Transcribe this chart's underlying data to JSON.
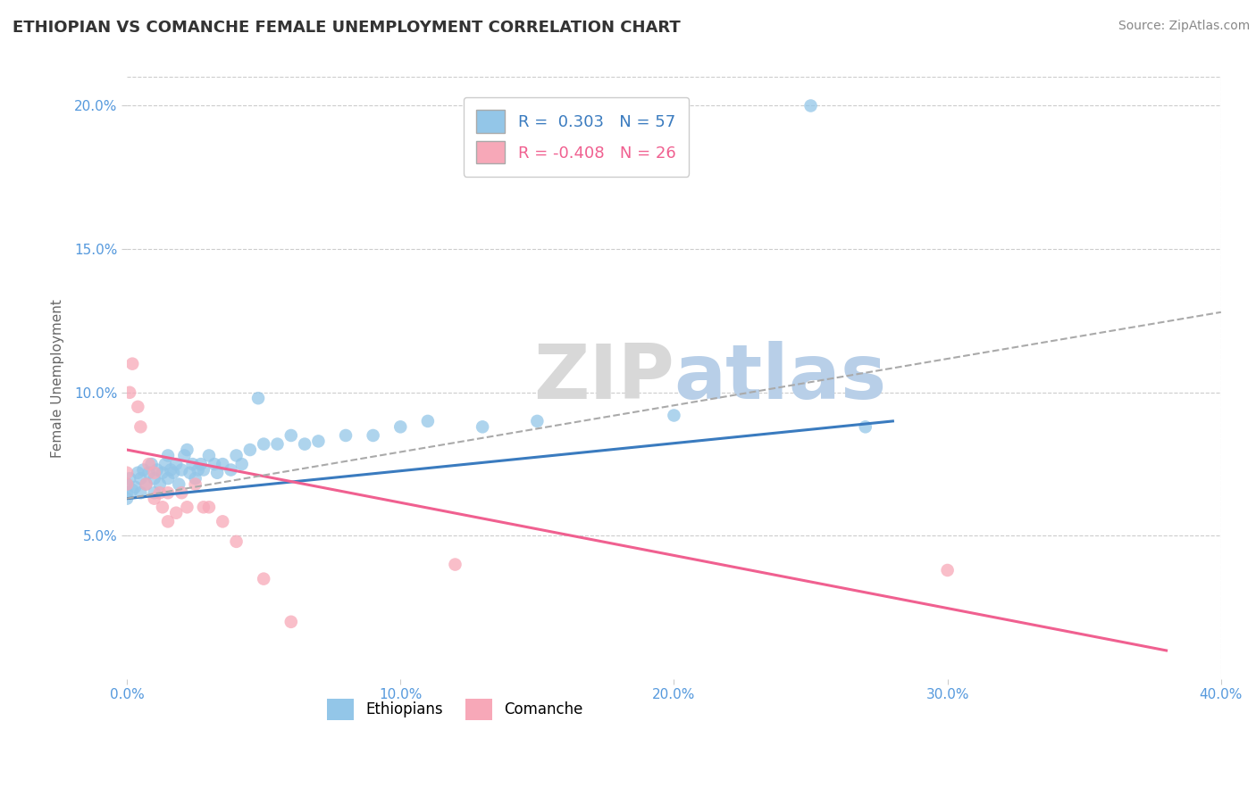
{
  "title": "ETHIOPIAN VS COMANCHE FEMALE UNEMPLOYMENT CORRELATION CHART",
  "source": "Source: ZipAtlas.com",
  "ylabel": "Female Unemployment",
  "xlim": [
    0.0,
    0.4
  ],
  "ylim": [
    0.0,
    0.21
  ],
  "xticks": [
    0.0,
    0.1,
    0.2,
    0.3,
    0.4
  ],
  "xtick_labels": [
    "0.0%",
    "10.0%",
    "20.0%",
    "30.0%",
    "40.0%"
  ],
  "yticks": [
    0.05,
    0.1,
    0.15,
    0.2
  ],
  "ytick_labels": [
    "5.0%",
    "10.0%",
    "15.0%",
    "20.0%"
  ],
  "background_color": "#ffffff",
  "grid_color": "#cccccc",
  "ethiopian_color": "#93c6e8",
  "comanche_color": "#f7a8b8",
  "ethiopian_line_color": "#3a7bbf",
  "comanche_line_color": "#f06090",
  "dashed_line_color": "#aaaaaa",
  "ethiopian_R": 0.303,
  "ethiopian_N": 57,
  "comanche_R": -0.408,
  "comanche_N": 26,
  "watermark_zip": "ZIP",
  "watermark_atlas": "atlas",
  "ethiopian_scatter": [
    [
      0.0,
      0.065
    ],
    [
      0.0,
      0.063
    ],
    [
      0.0,
      0.068
    ],
    [
      0.001,
      0.07
    ],
    [
      0.002,
      0.066
    ],
    [
      0.003,
      0.067
    ],
    [
      0.004,
      0.072
    ],
    [
      0.005,
      0.065
    ],
    [
      0.005,
      0.07
    ],
    [
      0.006,
      0.073
    ],
    [
      0.007,
      0.068
    ],
    [
      0.008,
      0.072
    ],
    [
      0.009,
      0.075
    ],
    [
      0.01,
      0.07
    ],
    [
      0.01,
      0.065
    ],
    [
      0.011,
      0.073
    ],
    [
      0.012,
      0.068
    ],
    [
      0.013,
      0.072
    ],
    [
      0.014,
      0.075
    ],
    [
      0.015,
      0.078
    ],
    [
      0.015,
      0.07
    ],
    [
      0.016,
      0.073
    ],
    [
      0.017,
      0.072
    ],
    [
      0.018,
      0.075
    ],
    [
      0.019,
      0.068
    ],
    [
      0.02,
      0.073
    ],
    [
      0.021,
      0.078
    ],
    [
      0.022,
      0.08
    ],
    [
      0.023,
      0.072
    ],
    [
      0.024,
      0.075
    ],
    [
      0.025,
      0.07
    ],
    [
      0.026,
      0.073
    ],
    [
      0.027,
      0.075
    ],
    [
      0.028,
      0.073
    ],
    [
      0.03,
      0.078
    ],
    [
      0.032,
      0.075
    ],
    [
      0.033,
      0.072
    ],
    [
      0.035,
      0.075
    ],
    [
      0.038,
      0.073
    ],
    [
      0.04,
      0.078
    ],
    [
      0.042,
      0.075
    ],
    [
      0.045,
      0.08
    ],
    [
      0.048,
      0.098
    ],
    [
      0.05,
      0.082
    ],
    [
      0.055,
      0.082
    ],
    [
      0.06,
      0.085
    ],
    [
      0.065,
      0.082
    ],
    [
      0.07,
      0.083
    ],
    [
      0.08,
      0.085
    ],
    [
      0.09,
      0.085
    ],
    [
      0.1,
      0.088
    ],
    [
      0.11,
      0.09
    ],
    [
      0.13,
      0.088
    ],
    [
      0.15,
      0.09
    ],
    [
      0.2,
      0.092
    ],
    [
      0.25,
      0.2
    ],
    [
      0.27,
      0.088
    ]
  ],
  "comanche_scatter": [
    [
      0.0,
      0.068
    ],
    [
      0.0,
      0.072
    ],
    [
      0.001,
      0.1
    ],
    [
      0.002,
      0.11
    ],
    [
      0.004,
      0.095
    ],
    [
      0.005,
      0.088
    ],
    [
      0.007,
      0.068
    ],
    [
      0.008,
      0.075
    ],
    [
      0.01,
      0.072
    ],
    [
      0.01,
      0.063
    ],
    [
      0.012,
      0.065
    ],
    [
      0.013,
      0.06
    ],
    [
      0.015,
      0.065
    ],
    [
      0.015,
      0.055
    ],
    [
      0.018,
      0.058
    ],
    [
      0.02,
      0.065
    ],
    [
      0.022,
      0.06
    ],
    [
      0.025,
      0.068
    ],
    [
      0.028,
      0.06
    ],
    [
      0.03,
      0.06
    ],
    [
      0.035,
      0.055
    ],
    [
      0.04,
      0.048
    ],
    [
      0.05,
      0.035
    ],
    [
      0.06,
      0.02
    ],
    [
      0.12,
      0.04
    ],
    [
      0.3,
      0.038
    ]
  ],
  "ethiopian_line": [
    [
      0.0,
      0.063
    ],
    [
      0.28,
      0.09
    ]
  ],
  "comanche_line": [
    [
      0.0,
      0.08
    ],
    [
      0.38,
      0.01
    ]
  ],
  "dashed_line": [
    [
      0.0,
      0.063
    ],
    [
      0.4,
      0.128
    ]
  ]
}
